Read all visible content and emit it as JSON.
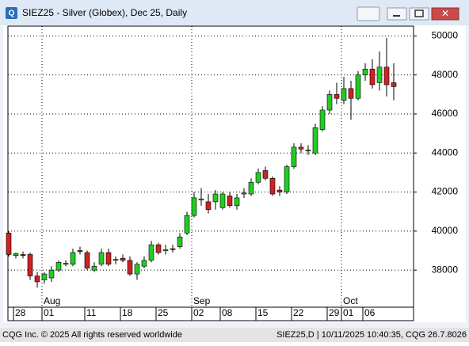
{
  "window_title": "SIEZ25 - Silver (Globex), Dec 25, Daily",
  "footer": {
    "left": "CQG Inc. © 2025 All rights reserved worldwide",
    "right": "SIEZ25,D | 10/11/2025 10:40:35, CQG 26.7.8026"
  },
  "chart_data": {
    "type": "candlestick",
    "categories": [
      null,
      "28",
      null,
      null,
      null,
      "01",
      null,
      null,
      null,
      null,
      null,
      "11",
      null,
      null,
      null,
      null,
      "18",
      null,
      null,
      null,
      null,
      "25",
      null,
      null,
      null,
      null,
      "02",
      null,
      null,
      null,
      "08",
      null,
      null,
      null,
      null,
      "15",
      null,
      null,
      null,
      null,
      "22",
      null,
      null,
      null,
      null,
      "29",
      null,
      "01",
      null,
      null,
      "06",
      null,
      null,
      null,
      null
    ],
    "months": [
      {
        "label": "Aug",
        "at": 5
      },
      {
        "label": "Sep",
        "at": 26
      },
      {
        "label": "Oct",
        "at": 47
      }
    ],
    "open": [
      39900,
      38750,
      38800,
      38800,
      37700,
      37500,
      37600,
      38000,
      38300,
      38300,
      39000,
      38900,
      38000,
      38300,
      38900,
      38500,
      38600,
      38500,
      37800,
      38200,
      38500,
      39300,
      39000,
      39100,
      39200,
      39900,
      40800,
      41600,
      41500,
      41500,
      41200,
      41800,
      41300,
      41900,
      41900,
      42500,
      43100,
      42700,
      42100,
      42000,
      43300,
      44300,
      44100,
      44000,
      45200,
      46200,
      47000,
      46700,
      47300,
      46800,
      48000,
      48300,
      47600,
      48400,
      47600
    ],
    "high": [
      40000,
      38900,
      38950,
      38900,
      37900,
      37900,
      38200,
      38500,
      38500,
      39100,
      39200,
      39000,
      38400,
      39100,
      39100,
      38700,
      38800,
      38700,
      38400,
      38700,
      39500,
      39400,
      39300,
      39300,
      39900,
      41000,
      42000,
      42200,
      41900,
      42100,
      42000,
      42000,
      41900,
      42200,
      42700,
      43200,
      43300,
      42800,
      42300,
      43400,
      44500,
      44500,
      44400,
      45500,
      46400,
      47200,
      47600,
      47900,
      47700,
      48200,
      48600,
      48800,
      49200,
      49900,
      48600
    ],
    "low": [
      38700,
      38600,
      38600,
      37500,
      37100,
      37300,
      37400,
      37900,
      38200,
      38200,
      38800,
      38000,
      37900,
      38200,
      38200,
      38300,
      38400,
      37700,
      37500,
      38100,
      38400,
      38800,
      38800,
      38900,
      39100,
      39800,
      40700,
      41300,
      40900,
      41100,
      41100,
      41200,
      41100,
      41700,
      41800,
      42400,
      42600,
      41800,
      41800,
      41900,
      43200,
      44000,
      43900,
      43900,
      45100,
      46000,
      46500,
      46500,
      45700,
      46700,
      47700,
      47300,
      47200,
      46900,
      46700
    ],
    "close": [
      38800,
      38850,
      38750,
      37700,
      37400,
      37800,
      38000,
      38400,
      38350,
      38900,
      38950,
      38100,
      38200,
      38900,
      38300,
      38550,
      38500,
      37800,
      38300,
      38500,
      39300,
      38900,
      39050,
      39050,
      39700,
      40800,
      41700,
      41650,
      41100,
      41900,
      41900,
      41300,
      41700,
      41950,
      42500,
      43000,
      42700,
      41900,
      42000,
      43300,
      44300,
      44200,
      44150,
      45300,
      46200,
      47000,
      46800,
      47300,
      46800,
      48000,
      48300,
      47500,
      48400,
      47500,
      47400
    ],
    "up_color": "#22cc22",
    "down_color": "#cc2222",
    "ylim": [
      36100,
      50500
    ],
    "yticks": [
      38000,
      40000,
      42000,
      44000,
      46000,
      48000,
      50000
    ],
    "grid": true
  }
}
